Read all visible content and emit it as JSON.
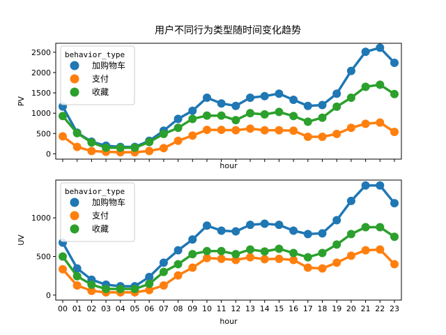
{
  "chart_data": [
    {
      "type": "line",
      "title": "用户不同行为类型随时间变化趋势",
      "xlabel": "hour",
      "ylabel": "PV",
      "ylim": [
        -130,
        2720
      ],
      "yticks": [
        0,
        500,
        1000,
        1500,
        2000,
        2500
      ],
      "show_xtick_labels": false,
      "grid": false,
      "legend": {
        "title": "behavior_type",
        "placement": "upper-left"
      },
      "categories": [
        "00",
        "01",
        "02",
        "03",
        "04",
        "05",
        "06",
        "07",
        "08",
        "09",
        "10",
        "11",
        "12",
        "13",
        "14",
        "15",
        "16",
        "17",
        "18",
        "19",
        "20",
        "21",
        "22",
        "23"
      ],
      "series": [
        {
          "name": "加购物车",
          "color": "#1f77b4",
          "values": [
            1165,
            520,
            300,
            200,
            170,
            170,
            320,
            570,
            860,
            1060,
            1380,
            1240,
            1180,
            1380,
            1420,
            1480,
            1330,
            1180,
            1200,
            1480,
            2040,
            2510,
            2610,
            2240
          ]
        },
        {
          "name": "支付",
          "color": "#ff7f0e",
          "values": [
            430,
            170,
            70,
            50,
            40,
            40,
            70,
            140,
            320,
            450,
            590,
            590,
            580,
            620,
            580,
            580,
            570,
            420,
            420,
            490,
            640,
            740,
            770,
            540
          ]
        },
        {
          "name": "收藏",
          "color": "#2ca02c",
          "values": [
            930,
            510,
            280,
            150,
            150,
            150,
            290,
            490,
            640,
            860,
            940,
            940,
            830,
            1000,
            970,
            1030,
            930,
            790,
            890,
            1160,
            1380,
            1650,
            1700,
            1470
          ]
        }
      ]
    },
    {
      "type": "line",
      "xlabel": "hour",
      "ylabel": "UV",
      "ylim": [
        -65,
        1490
      ],
      "yticks": [
        0,
        500,
        1000
      ],
      "show_xtick_labels": true,
      "grid": false,
      "legend": {
        "title": "behavior_type",
        "placement": "upper-left"
      },
      "categories": [
        "00",
        "01",
        "02",
        "03",
        "04",
        "05",
        "06",
        "07",
        "08",
        "09",
        "10",
        "11",
        "12",
        "13",
        "14",
        "15",
        "16",
        "17",
        "18",
        "19",
        "20",
        "21",
        "22",
        "23"
      ],
      "series": [
        {
          "name": "加购物车",
          "color": "#1f77b4",
          "values": [
            680,
            345,
            200,
            135,
            115,
            115,
            235,
            420,
            580,
            720,
            900,
            835,
            825,
            910,
            925,
            910,
            835,
            790,
            800,
            970,
            1220,
            1420,
            1420,
            1190
          ]
        },
        {
          "name": "支付",
          "color": "#ff7f0e",
          "values": [
            335,
            125,
            55,
            35,
            35,
            35,
            65,
            125,
            255,
            355,
            480,
            470,
            455,
            490,
            465,
            470,
            455,
            355,
            345,
            420,
            510,
            580,
            590,
            400
          ]
        },
        {
          "name": "收藏",
          "color": "#2ca02c",
          "values": [
            500,
            245,
            135,
            80,
            80,
            80,
            145,
            300,
            400,
            530,
            570,
            570,
            530,
            590,
            565,
            600,
            545,
            490,
            545,
            655,
            790,
            880,
            880,
            755
          ]
        }
      ]
    }
  ]
}
